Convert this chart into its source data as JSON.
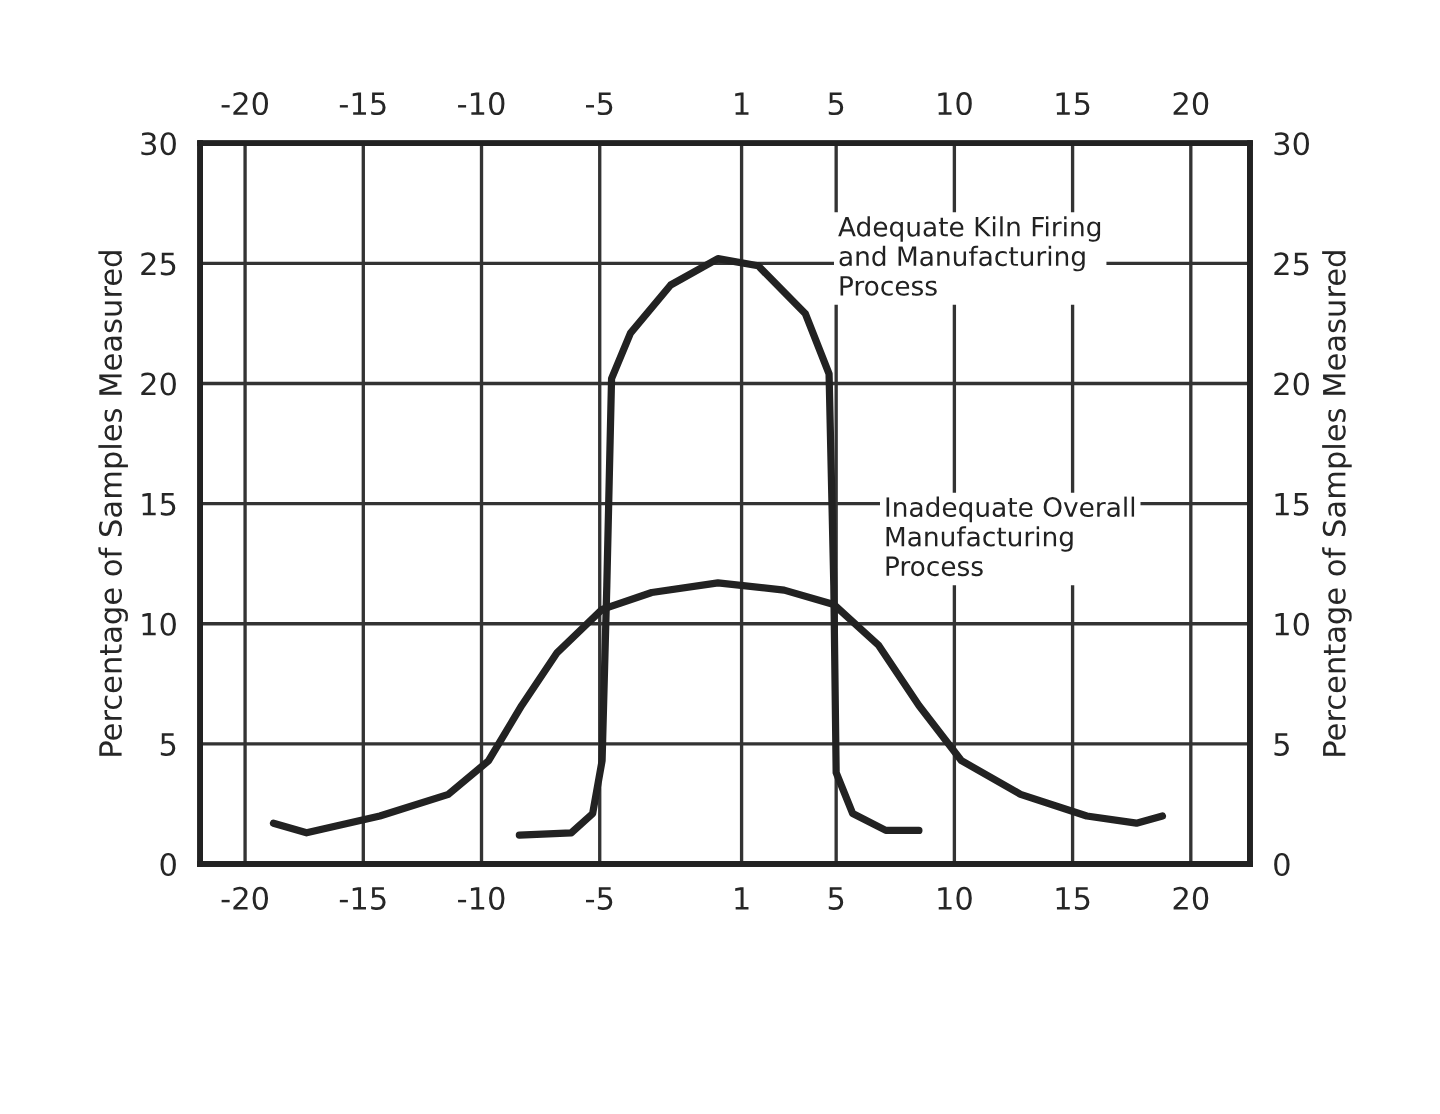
{
  "chart_data": {
    "type": "line",
    "ylabel": "Percentage of Samples Measured",
    "y2label": "Percentage of Samples Measured",
    "xlim": [
      -21.9,
      22.5
    ],
    "ylim": [
      0,
      30
    ],
    "x2lim": [
      -21.9,
      22.5
    ],
    "y2lim": [
      0,
      30
    ],
    "xticks": [
      -20,
      -15,
      -10,
      -5,
      1,
      5,
      10,
      15,
      20
    ],
    "x2ticks": [
      -20,
      -15,
      -10,
      -5,
      1,
      5,
      10,
      15,
      20
    ],
    "yticks": [
      0,
      5,
      10,
      15,
      20,
      25,
      30
    ],
    "y2ticks": [
      0,
      5,
      10,
      15,
      20,
      25,
      30
    ],
    "grid": true,
    "legend": false,
    "marker": "none",
    "line_style": "solid",
    "series": [
      {
        "name": "Adequate Kiln Firing\nand Manufacturing\nProcess",
        "color": "#222222",
        "x": [
          -8.4,
          -6.2,
          -5.3,
          -4.9,
          -4.7,
          -4.5,
          -3.7,
          -2.0,
          0,
          1.7,
          3.7,
          4.7,
          4.9,
          5.0,
          5.7,
          7.1,
          8.5
        ],
        "values": [
          1.2,
          1.3,
          2.1,
          4.3,
          11.6,
          20.2,
          22.1,
          24.1,
          25.2,
          24.9,
          22.9,
          20.4,
          11.6,
          3.8,
          2.1,
          1.4,
          1.4
        ]
      },
      {
        "name": "Inadequate Overall\nManufacturing\nProcess",
        "color": "#222222",
        "x": [
          -18.8,
          -17.4,
          -14.3,
          -11.4,
          -9.7,
          -8.3,
          -6.8,
          -4.9,
          -2.8,
          0,
          2.8,
          4.9,
          6.8,
          8.5,
          10.3,
          12.8,
          15.6,
          17.7,
          18.8
        ],
        "values": [
          1.7,
          1.3,
          2.0,
          2.9,
          4.3,
          6.6,
          8.8,
          10.6,
          11.3,
          11.7,
          11.4,
          10.8,
          9.1,
          6.6,
          4.3,
          2.9,
          2.0,
          1.7,
          2.0
        ]
      }
    ]
  }
}
